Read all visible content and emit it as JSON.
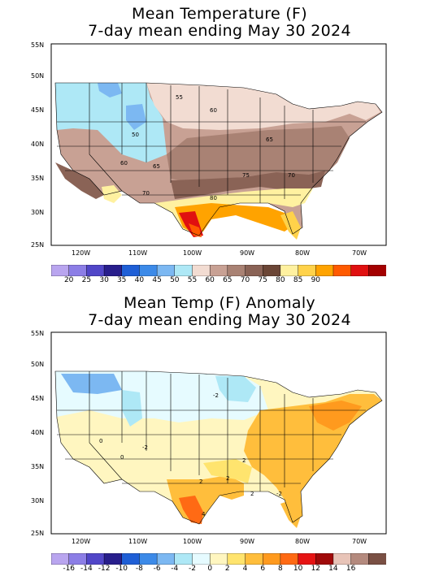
{
  "panel1": {
    "title_line1": "Mean Temperature (F)",
    "title_line2": "7-day mean ending May 30 2024",
    "lat_labels": [
      "55N",
      "50N",
      "45N",
      "40N",
      "35N",
      "30N",
      "25N"
    ],
    "lon_labels": [
      "120W",
      "110W",
      "100W",
      "90W",
      "80W",
      "70W"
    ],
    "contour_labels": [
      "55",
      "60",
      "50",
      "60",
      "65",
      "65",
      "70",
      "75",
      "70",
      "80"
    ],
    "legend": {
      "colors": [
        "#b9a5ef",
        "#8c7ee6",
        "#5146c8",
        "#281e8c",
        "#1f5fd6",
        "#3c8ae8",
        "#7cb8f2",
        "#aee8f6",
        "#f2dcd2",
        "#c8a194",
        "#a98274",
        "#8a6356",
        "#6b4636",
        "#fff1a0",
        "#ffd24a",
        "#ffa300",
        "#ff5a00",
        "#e01010",
        "#a40000"
      ],
      "labels": [
        "20",
        "25",
        "30",
        "35",
        "40",
        "45",
        "50",
        "55",
        "60",
        "65",
        "70",
        "75",
        "80",
        "85",
        "90"
      ]
    }
  },
  "panel2": {
    "title_line1": "Mean Temp (F) Anomaly",
    "title_line2": "7-day mean ending May 30 2024",
    "lat_labels": [
      "55N",
      "50N",
      "45N",
      "40N",
      "35N",
      "30N",
      "25N"
    ],
    "lon_labels": [
      "120W",
      "110W",
      "100W",
      "90W",
      "80W",
      "70W"
    ],
    "contour_labels": [
      "-2",
      "-2",
      "0",
      "0",
      "2",
      "2",
      "2",
      "2",
      "4",
      "-2"
    ],
    "legend": {
      "colors": [
        "#b9a5ef",
        "#8c7ee6",
        "#5146c8",
        "#281e8c",
        "#1f5fd6",
        "#3c8ae8",
        "#7cb8f2",
        "#aee8f6",
        "#e6fbff",
        "#fff6c0",
        "#ffe46e",
        "#ffbe3c",
        "#ff9a1e",
        "#ff6a14",
        "#e61414",
        "#a00a0a",
        "#e8c4b8",
        "#b48a7e",
        "#7a5044"
      ],
      "labels": [
        "-16",
        "-14",
        "-12",
        "-10",
        "-8",
        "-6",
        "-4",
        "-2",
        "0",
        "2",
        "4",
        "6",
        "8",
        "10",
        "12",
        "14",
        "16"
      ]
    }
  }
}
